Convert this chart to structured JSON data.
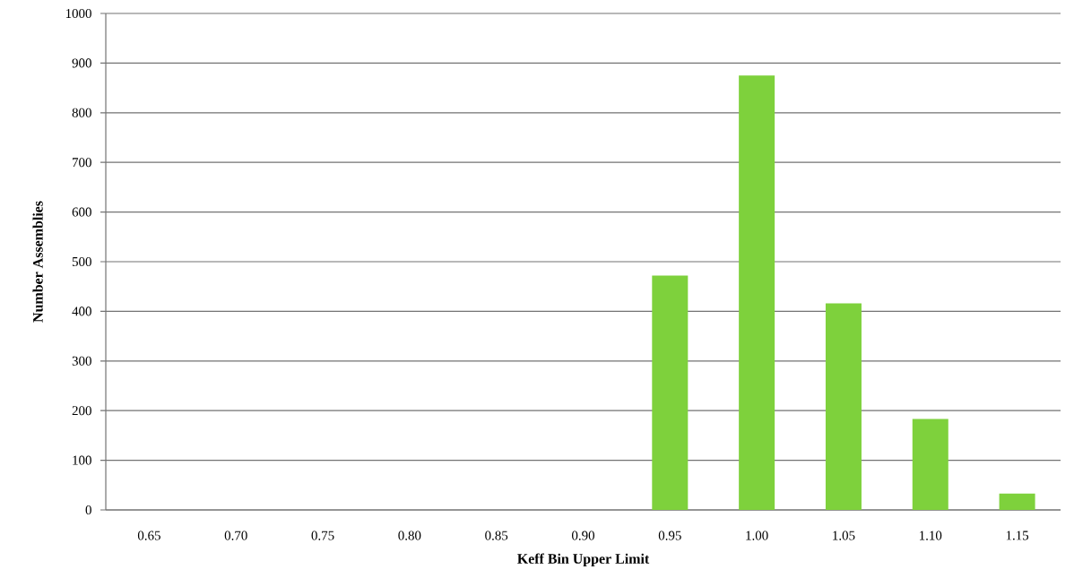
{
  "chart_data": {
    "type": "bar",
    "xlabel": "Keff Bin Upper Limit",
    "ylabel": "Number Assemblies",
    "categories": [
      "0.65",
      "0.70",
      "0.75",
      "0.80",
      "0.85",
      "0.90",
      "0.95",
      "1.00",
      "1.05",
      "1.10",
      "1.15"
    ],
    "values": [
      0,
      0,
      0,
      0,
      0,
      0,
      472,
      875,
      416,
      183,
      33
    ],
    "color": "#7ed13c",
    "ylim": [
      0,
      1000
    ],
    "yticks": [
      0,
      100,
      200,
      300,
      400,
      500,
      600,
      700,
      800,
      900,
      1000
    ],
    "grid": "y"
  }
}
